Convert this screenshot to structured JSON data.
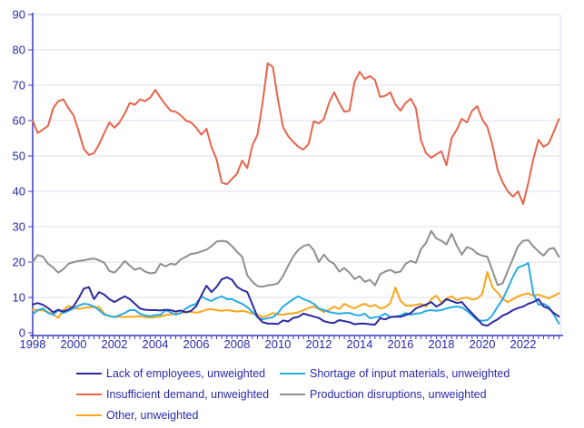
{
  "chart_data": {
    "type": "line",
    "title": "",
    "x_start_year": 1998,
    "x_step_years": 0.25,
    "x_end_year": 2023.75,
    "x_tick_labels": [
      "1998",
      "2000",
      "2002",
      "2004",
      "2006",
      "2008",
      "2010",
      "2012",
      "2014",
      "2016",
      "2018",
      "2020",
      "2022"
    ],
    "x_tick_step_years": 2,
    "y_tick_labels": [
      "0",
      "10",
      "20",
      "30",
      "40",
      "50",
      "60",
      "70",
      "80",
      "90"
    ],
    "ylim": [
      0,
      90
    ],
    "grid": "horizontal",
    "legend_position": "bottom",
    "axis_color": "#3c3cc0",
    "label_color": "#2a2aad",
    "gridline_color": "#dcdcf2",
    "z_order": [
      4,
      2,
      3,
      0,
      1
    ],
    "series": [
      {
        "name": "Lack of employees, unweighted",
        "color": "#2d2a9f",
        "values": [
          8,
          8.4,
          7.9,
          7,
          5.8,
          6.5,
          6,
          6.6,
          7.5,
          9.8,
          12.5,
          12.9,
          9.5,
          11.5,
          10.8,
          9.5,
          8.7,
          9.5,
          10.3,
          9.5,
          8.2,
          6.9,
          6.5,
          6.4,
          6.4,
          6.3,
          6.5,
          6.4,
          6,
          6.3,
          5.8,
          6.2,
          7.5,
          10.5,
          13.3,
          11.5,
          13,
          15.1,
          15.7,
          15,
          13,
          12.1,
          11.5,
          8,
          4.5,
          3,
          2.6,
          2.6,
          2.5,
          3.5,
          3.2,
          4.2,
          4.5,
          5.4,
          5,
          4.6,
          4.2,
          3.3,
          2.9,
          2.8,
          3.6,
          3.3,
          3,
          2.4,
          2.6,
          2.6,
          2.4,
          2.3,
          4.1,
          3.8,
          4.4,
          4.6,
          4.5,
          5,
          5.6,
          6.9,
          7.5,
          8,
          8.7,
          7.4,
          8.2,
          9.5,
          9,
          8.4,
          8.7,
          7,
          5.5,
          4,
          2.3,
          2,
          3,
          3.8,
          4.9,
          5.5,
          6.4,
          7,
          7.4,
          8.2,
          8.7,
          9.5,
          7.4,
          6.9,
          5.6,
          4.6
        ]
      },
      {
        "name": "Insufficient demand, unweighted",
        "color": "#e7654c",
        "values": [
          60,
          56.5,
          57.5,
          58.5,
          63.5,
          65.5,
          66,
          63.5,
          61.5,
          57,
          52,
          50.3,
          50.8,
          53.3,
          56.5,
          59.5,
          58,
          59.5,
          62,
          65,
          64.5,
          66,
          65.5,
          66.5,
          68.7,
          66.5,
          64.5,
          62.8,
          62.5,
          61.5,
          60,
          59.5,
          58,
          56,
          57.7,
          52.5,
          49,
          42.5,
          42,
          43.5,
          45,
          48.7,
          46.6,
          53,
          56,
          65,
          76.2,
          75.2,
          66,
          58.2,
          55.6,
          54,
          52.6,
          51.8,
          53.4,
          59.8,
          59.2,
          60.5,
          65,
          68,
          65,
          62.5,
          62.8,
          71,
          73.8,
          71.8,
          72.6,
          71.5,
          66.7,
          67,
          68,
          64.6,
          62.8,
          65,
          66.2,
          63.5,
          54.4,
          50.8,
          49.5,
          50.5,
          51.3,
          47.4,
          55.1,
          57.5,
          60.5,
          59.5,
          62.8,
          64.1,
          60.3,
          58.2,
          53,
          46,
          42.5,
          40,
          38.5,
          40,
          36.4,
          42.3,
          49.2,
          54.6,
          52.6,
          53.5,
          56.9,
          60.5
        ]
      },
      {
        "name": "Other, unweighted",
        "color": "#f9a61a",
        "values": [
          6.5,
          6.4,
          6.3,
          5.9,
          5.2,
          4.2,
          6.5,
          7.6,
          7,
          6.8,
          7,
          7.2,
          7.2,
          7.3,
          5.4,
          4.7,
          4.5,
          4.6,
          4.4,
          4.6,
          4.5,
          4.7,
          4.4,
          4.3,
          4.4,
          4.6,
          5,
          5.2,
          5.4,
          5.6,
          5.8,
          5.9,
          5.7,
          6,
          6.5,
          6.7,
          6.4,
          6.2,
          6.4,
          6.2,
          6,
          6.2,
          5.9,
          5.4,
          5.2,
          4.4,
          4.9,
          5.6,
          5.2,
          5.1,
          5.4,
          5.5,
          5.8,
          6.4,
          7,
          7.4,
          6.7,
          5.9,
          6.5,
          7.4,
          6.7,
          8.2,
          7.4,
          6.9,
          7.7,
          8.2,
          7.4,
          7.9,
          6.9,
          7.2,
          8.4,
          12.8,
          9,
          7.7,
          7.7,
          7.9,
          8.2,
          7.4,
          9.5,
          10.5,
          8.5,
          9.7,
          10.3,
          9.2,
          9.7,
          10,
          9.4,
          9.7,
          11,
          17.2,
          12.8,
          11.3,
          9.5,
          8.7,
          9.5,
          10.3,
          10.8,
          11.1,
          10.5,
          10.8,
          10.3,
          9.7,
          10.5,
          11.2
        ]
      },
      {
        "name": "Shortage of input materials, unweighted",
        "color": "#29abe2",
        "values": [
          5.2,
          6.4,
          6.9,
          5.6,
          5.1,
          6.4,
          5.6,
          6.2,
          6.9,
          7.7,
          8.2,
          8,
          7.4,
          6.4,
          5.1,
          4.8,
          4.4,
          5,
          5.6,
          6.4,
          6.4,
          5.4,
          4.9,
          4.7,
          5,
          5.1,
          6.4,
          5.8,
          5.1,
          5.6,
          6.9,
          7.7,
          8.2,
          10.3,
          9.5,
          9,
          9.8,
          10.3,
          9.5,
          9.5,
          8.8,
          8.2,
          7.2,
          5.9,
          4.4,
          3.8,
          4.1,
          4.4,
          5.6,
          7.4,
          8.5,
          9.5,
          10.3,
          9.5,
          9,
          8.2,
          6.9,
          6.4,
          5.9,
          5.6,
          5.4,
          5.6,
          5.6,
          5.1,
          4.9,
          5.4,
          4.1,
          4.4,
          4.6,
          5.4,
          4.4,
          4.6,
          4.9,
          5.6,
          5.1,
          5.4,
          5.6,
          6.2,
          6.4,
          6.2,
          6.4,
          6.9,
          7.2,
          7.4,
          7.2,
          6.2,
          4.9,
          3.6,
          3.4,
          3.6,
          5,
          7.4,
          9.5,
          12.6,
          15.9,
          18.5,
          19,
          19.7,
          11,
          7.9,
          8.2,
          7.4,
          5.1,
          2.6
        ]
      },
      {
        "name": "Production disruptions, unweighted",
        "color": "#8f8f8f",
        "values": [
          20,
          22,
          21.5,
          19.5,
          18.5,
          17,
          18,
          19.5,
          20,
          20.3,
          20.5,
          20.8,
          21,
          20.5,
          19.8,
          17.5,
          17,
          18.5,
          20.3,
          19,
          17.8,
          18.3,
          17.3,
          16.8,
          17,
          19.5,
          18.8,
          19.5,
          19.3,
          20.8,
          21.5,
          22.3,
          22.5,
          23,
          23.5,
          24.5,
          25.8,
          26,
          25.8,
          24.5,
          22.9,
          21.5,
          16.2,
          14.4,
          13.2,
          13,
          13.4,
          13.6,
          14,
          16,
          19,
          21.6,
          23.5,
          24.5,
          25,
          23.4,
          20,
          22.1,
          20.3,
          19.5,
          17.3,
          18.3,
          17,
          15.2,
          16,
          14.4,
          15,
          13.4,
          16.5,
          17.3,
          17.8,
          17,
          17.3,
          19.5,
          20.3,
          19.8,
          23.7,
          25.4,
          28.8,
          26.7,
          26,
          25,
          28,
          24.7,
          22.1,
          24.2,
          23.7,
          22.4,
          21.8,
          21.5,
          17.5,
          13.5,
          14,
          17.5,
          21,
          24.5,
          26,
          26.2,
          24.4,
          23,
          21.8,
          23.6,
          24,
          21.5
        ]
      }
    ]
  }
}
